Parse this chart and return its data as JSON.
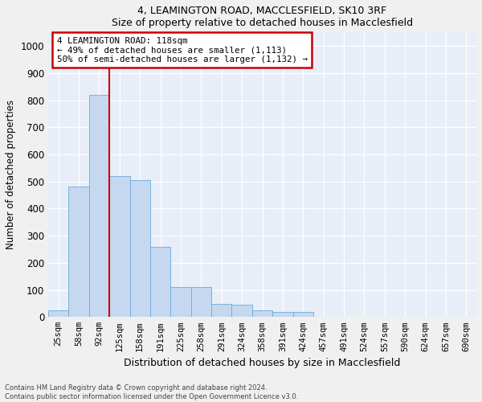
{
  "title1": "4, LEAMINGTON ROAD, MACCLESFIELD, SK10 3RF",
  "title2": "Size of property relative to detached houses in Macclesfield",
  "xlabel": "Distribution of detached houses by size in Macclesfield",
  "ylabel": "Number of detached properties",
  "bar_labels": [
    "25sqm",
    "58sqm",
    "92sqm",
    "125sqm",
    "158sqm",
    "191sqm",
    "225sqm",
    "258sqm",
    "291sqm",
    "324sqm",
    "358sqm",
    "391sqm",
    "424sqm",
    "457sqm",
    "491sqm",
    "524sqm",
    "557sqm",
    "590sqm",
    "624sqm",
    "657sqm",
    "690sqm"
  ],
  "bar_values": [
    25,
    480,
    820,
    520,
    505,
    260,
    110,
    110,
    50,
    45,
    25,
    20,
    20,
    0,
    0,
    0,
    0,
    0,
    0,
    0,
    0
  ],
  "bar_color": "#c5d8f0",
  "bar_edge_color": "#6baad8",
  "background_color": "#e8eef8",
  "grid_color": "#ffffff",
  "vline_color": "#cc0000",
  "vline_x_index": 2.5,
  "annotation_line1": "4 LEAMINGTON ROAD: 118sqm",
  "annotation_line2": "← 49% of detached houses are smaller (1,113)",
  "annotation_line3": "50% of semi-detached houses are larger (1,132) →",
  "annotation_box_color": "#ffffff",
  "annotation_box_edge": "#cc0000",
  "ylim": [
    0,
    1050
  ],
  "yticks": [
    0,
    100,
    200,
    300,
    400,
    500,
    600,
    700,
    800,
    900,
    1000
  ],
  "footnote1": "Contains HM Land Registry data © Crown copyright and database right 2024.",
  "footnote2": "Contains public sector information licensed under the Open Government Licence v3.0.",
  "fig_width": 6.0,
  "fig_height": 5.0,
  "fig_bg": "#f0f0f0"
}
